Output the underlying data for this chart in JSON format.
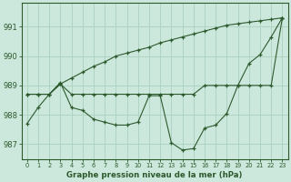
{
  "title": "Graphe pression niveau de la mer (hPa)",
  "background_color": "#cce8dd",
  "grid_color": "#b0d4c4",
  "line_color": "#2d5a2d",
  "x_ticks": [
    0,
    1,
    2,
    3,
    4,
    5,
    6,
    7,
    8,
    9,
    10,
    11,
    12,
    13,
    14,
    15,
    16,
    17,
    18,
    19,
    20,
    21,
    22,
    23
  ],
  "ylim": [
    986.5,
    991.8
  ],
  "yticks": [
    987,
    988,
    989,
    990,
    991
  ],
  "line1": [
    987.7,
    988.25,
    988.7,
    989.1,
    988.25,
    988.15,
    987.85,
    987.75,
    987.65,
    987.65,
    987.75,
    988.65,
    988.65,
    987.05,
    986.8,
    986.85,
    987.55,
    987.65,
    988.05,
    989.0,
    989.75,
    990.05,
    990.65,
    991.3
  ],
  "line2": [
    988.7,
    988.7,
    988.7,
    989.05,
    988.7,
    988.7,
    988.7,
    988.7,
    988.7,
    988.7,
    988.7,
    988.7,
    988.7,
    988.7,
    988.7,
    988.7,
    989.0,
    989.0,
    989.0,
    989.0,
    989.0,
    989.0,
    989.0,
    991.3
  ],
  "line3": [
    988.7,
    988.7,
    988.7,
    989.05,
    989.25,
    989.45,
    989.65,
    989.8,
    990.0,
    990.1,
    990.2,
    990.3,
    990.45,
    990.55,
    990.65,
    990.75,
    990.85,
    990.95,
    991.05,
    991.1,
    991.15,
    991.2,
    991.25,
    991.3
  ]
}
